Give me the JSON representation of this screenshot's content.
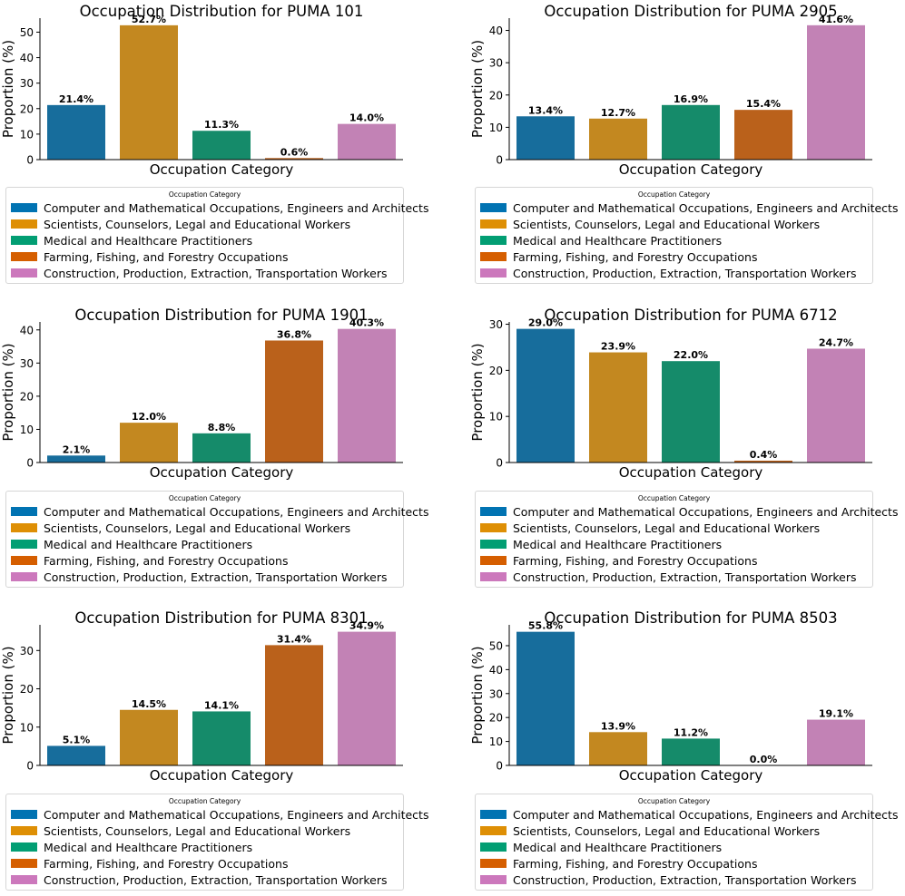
{
  "chart_data": [
    {
      "type": "bar",
      "title": "Occupation Distribution for PUMA 101",
      "xlabel": "Occupation Category",
      "ylabel": "Proportion (%)",
      "values": [
        21.4,
        52.7,
        11.3,
        0.6,
        14.0
      ],
      "labels": [
        "21.4%",
        "52.7%",
        "11.3%",
        "0.6%",
        "14.0%"
      ],
      "ylim": [
        0,
        55.5
      ],
      "yticks": [
        0,
        10,
        20,
        30,
        40,
        50
      ]
    },
    {
      "type": "bar",
      "title": "Occupation Distribution for PUMA 2905",
      "xlabel": "Occupation Category",
      "ylabel": "Proportion (%)",
      "values": [
        13.4,
        12.7,
        16.9,
        15.4,
        41.6
      ],
      "labels": [
        "13.4%",
        "12.7%",
        "16.9%",
        "15.4%",
        "41.6%"
      ],
      "ylim": [
        0,
        43.8
      ],
      "yticks": [
        0,
        10,
        20,
        30,
        40
      ]
    },
    {
      "type": "bar",
      "title": "Occupation Distribution for PUMA 1901",
      "xlabel": "Occupation Category",
      "ylabel": "Proportion (%)",
      "values": [
        2.1,
        12.0,
        8.8,
        36.8,
        40.3
      ],
      "labels": [
        "2.1%",
        "12.0%",
        "8.8%",
        "36.8%",
        "40.3%"
      ],
      "ylim": [
        0,
        42.4
      ],
      "yticks": [
        0,
        10,
        20,
        30,
        40
      ]
    },
    {
      "type": "bar",
      "title": "Occupation Distribution for PUMA 6712",
      "xlabel": "Occupation Category",
      "ylabel": "Proportion (%)",
      "values": [
        29.0,
        23.9,
        22.0,
        0.4,
        24.7
      ],
      "labels": [
        "29.0%",
        "23.9%",
        "22.0%",
        "0.4%",
        "24.7%"
      ],
      "ylim": [
        0,
        30.5
      ],
      "yticks": [
        0,
        10,
        20,
        30
      ]
    },
    {
      "type": "bar",
      "title": "Occupation Distribution for PUMA 8301",
      "xlabel": "Occupation Category",
      "ylabel": "Proportion (%)",
      "values": [
        5.1,
        14.5,
        14.1,
        31.4,
        34.9
      ],
      "labels": [
        "5.1%",
        "14.5%",
        "14.1%",
        "31.4%",
        "34.9%"
      ],
      "ylim": [
        0,
        36.7
      ],
      "yticks": [
        0,
        10,
        20,
        30
      ]
    },
    {
      "type": "bar",
      "title": "Occupation Distribution for PUMA 8503",
      "xlabel": "Occupation Category",
      "ylabel": "Proportion (%)",
      "values": [
        55.8,
        13.9,
        11.2,
        0.0,
        19.1
      ],
      "labels": [
        "55.8%",
        "13.9%",
        "11.2%",
        "0.0%",
        "19.1%"
      ],
      "ylim": [
        0,
        58.7
      ],
      "yticks": [
        0,
        10,
        20,
        30,
        40,
        50
      ]
    }
  ],
  "legend": {
    "title": "Occupation Category",
    "items": [
      "Computer and Mathematical Occupations, Engineers and Architects",
      "Scientists, Counselors, Legal and Educational Workers",
      "Medical and Healthcare Practitioners",
      "Farming, Fishing, and Forestry Occupations",
      "Construction, Production, Extraction, Transportation Workers"
    ]
  },
  "colors": {
    "bars": [
      "#176d9c",
      "#c38820",
      "#158b6a",
      "#ba611b",
      "#c282b5"
    ],
    "legend_swatches": [
      "#0173b2",
      "#de8f05",
      "#029e73",
      "#d55e00",
      "#cc78bc"
    ]
  }
}
